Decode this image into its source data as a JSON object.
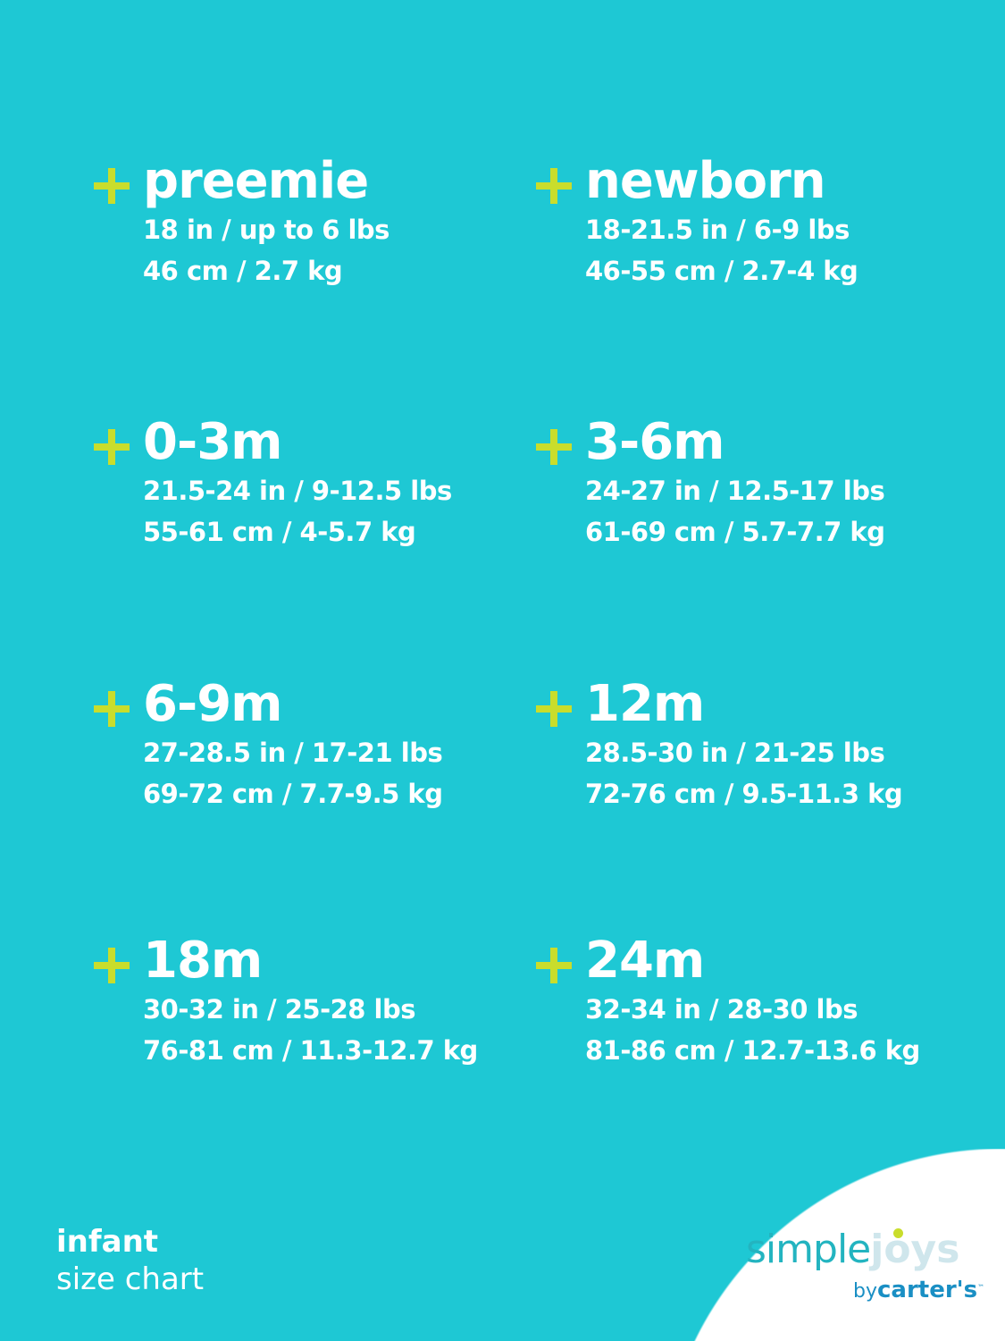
{
  "sizes": [
    {
      "name": "preemie",
      "imperial": "18 in / up to 6 lbs",
      "metric": "46 cm / 2.7 kg"
    },
    {
      "name": "newborn",
      "imperial": "18-21.5 in / 6-9 lbs",
      "metric": "46-55 cm / 2.7-4 kg"
    },
    {
      "name": "0-3m",
      "imperial": "21.5-24 in / 9-12.5 lbs",
      "metric": "55-61 cm / 4-5.7 kg"
    },
    {
      "name": "3-6m",
      "imperial": "24-27 in / 12.5-17 lbs",
      "metric": "61-69 cm / 5.7-7.7 kg"
    },
    {
      "name": "6-9m",
      "imperial": "27-28.5 in / 17-21 lbs",
      "metric": "69-72 cm / 7.7-9.5 kg"
    },
    {
      "name": "12m",
      "imperial": "28.5-30 in / 21-25 lbs",
      "metric": "72-76 cm / 9.5-11.3 kg"
    },
    {
      "name": "18m",
      "imperial": "30-32 in / 25-28 lbs",
      "metric": "76-81 cm / 11.3-12.7 kg"
    },
    {
      "name": "24m",
      "imperial": "32-34 in / 28-30 lbs",
      "metric": "81-86 cm / 12.7-13.6 kg"
    }
  ],
  "footer": {
    "line1": "infant",
    "line2": "size chart"
  },
  "logo": {
    "simple": "simple",
    "joys": "joys",
    "by": "by",
    "brand": "carter's",
    "tm": "™"
  },
  "colors": {
    "background": "#1ec8d4",
    "plus": "#c9dd2c",
    "text": "#ffffff"
  }
}
